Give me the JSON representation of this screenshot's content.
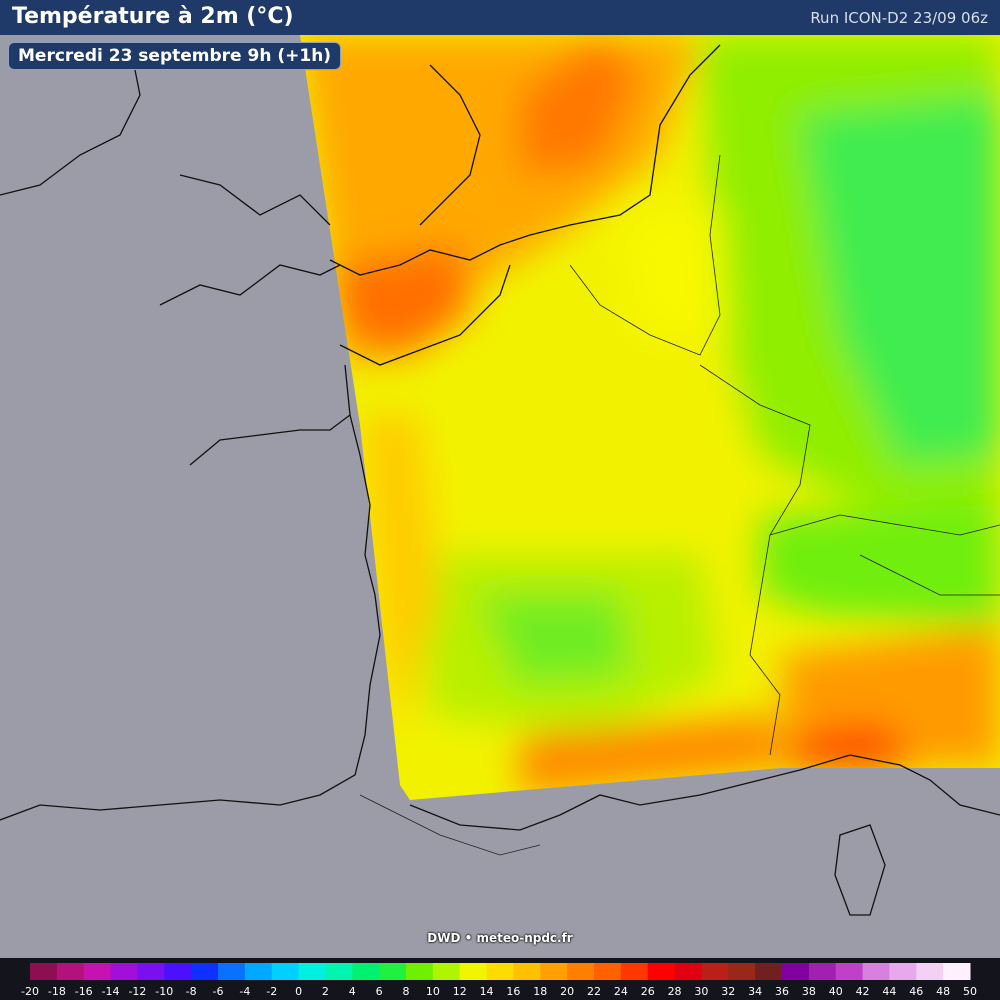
{
  "header": {
    "title": "Température à 2m (°C)",
    "run": "Run ICON-D2 23/09 06z"
  },
  "date_label": "Mercredi 23 septembre 9h (+1h)",
  "credit": "DWD • meteo-npdc.fr",
  "legend": {
    "labels": [
      -20,
      -18,
      -16,
      -14,
      -12,
      -10,
      -8,
      -6,
      -4,
      -2,
      0,
      2,
      4,
      6,
      8,
      10,
      12,
      14,
      16,
      18,
      20,
      22,
      24,
      26,
      28,
      30,
      32,
      34,
      36,
      38,
      40,
      42,
      44,
      46,
      48,
      50
    ],
    "colors": [
      "#8c0f52",
      "#b3127d",
      "#c612b0",
      "#a010d8",
      "#7a10f0",
      "#4a10ff",
      "#1030ff",
      "#0a70ff",
      "#00a8ff",
      "#00d0ff",
      "#00f0e0",
      "#00f5b0",
      "#00f070",
      "#20f040",
      "#70f000",
      "#b0f500",
      "#f0f500",
      "#ffdc00",
      "#ffc000",
      "#ffa000",
      "#ff8000",
      "#ff6000",
      "#ff3800",
      "#ff0000",
      "#e00010",
      "#b82018",
      "#982818",
      "#702020",
      "#8000a0",
      "#a020b0",
      "#c040c8",
      "#d880e0",
      "#e8a8ec",
      "#f4d0f4",
      "#fff0ff"
    ]
  }
}
